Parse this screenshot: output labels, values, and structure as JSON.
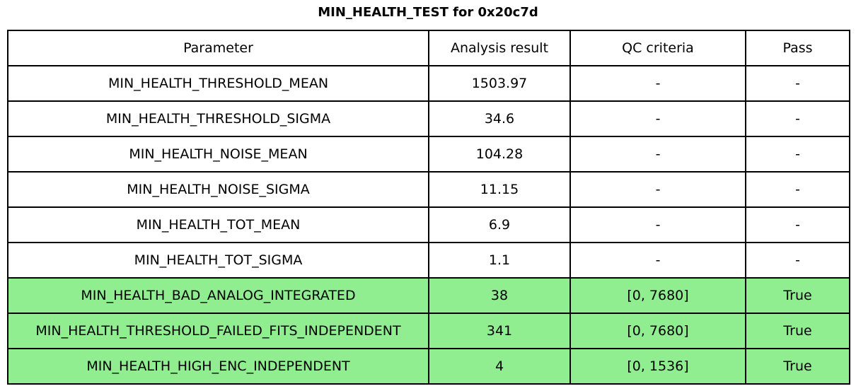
{
  "title": "MIN_HEALTH_TEST for 0x20c7d",
  "chart_data": {
    "type": "table",
    "title": "MIN_HEALTH_TEST for 0x20c7d",
    "columns": [
      "Parameter",
      "Analysis result",
      "QC criteria",
      "Pass"
    ],
    "rows": [
      {
        "parameter": "MIN_HEALTH_THRESHOLD_MEAN",
        "analysis_result": "1503.97",
        "qc_criteria": "-",
        "pass": "-",
        "highlighted": false
      },
      {
        "parameter": "MIN_HEALTH_THRESHOLD_SIGMA",
        "analysis_result": "34.6",
        "qc_criteria": "-",
        "pass": "-",
        "highlighted": false
      },
      {
        "parameter": "MIN_HEALTH_NOISE_MEAN",
        "analysis_result": "104.28",
        "qc_criteria": "-",
        "pass": "-",
        "highlighted": false
      },
      {
        "parameter": "MIN_HEALTH_NOISE_SIGMA",
        "analysis_result": "11.15",
        "qc_criteria": "-",
        "pass": "-",
        "highlighted": false
      },
      {
        "parameter": "MIN_HEALTH_TOT_MEAN",
        "analysis_result": "6.9",
        "qc_criteria": "-",
        "pass": "-",
        "highlighted": false
      },
      {
        "parameter": "MIN_HEALTH_TOT_SIGMA",
        "analysis_result": "1.1",
        "qc_criteria": "-",
        "pass": "-",
        "highlighted": false
      },
      {
        "parameter": "MIN_HEALTH_BAD_ANALOG_INTEGRATED",
        "analysis_result": "38",
        "qc_criteria": "[0, 7680]",
        "pass": "True",
        "highlighted": true
      },
      {
        "parameter": "MIN_HEALTH_THRESHOLD_FAILED_FITS_INDEPENDENT",
        "analysis_result": "341",
        "qc_criteria": "[0, 7680]",
        "pass": "True",
        "highlighted": true
      },
      {
        "parameter": "MIN_HEALTH_HIGH_ENC_INDEPENDENT",
        "analysis_result": "4",
        "qc_criteria": "[0, 1536]",
        "pass": "True",
        "highlighted": true
      }
    ],
    "layout": {
      "grid": true,
      "text_align": "center",
      "highlighted_row_indices": [
        6,
        7,
        8
      ]
    },
    "colors": {
      "highlight_green": "#90EE90",
      "border": "#000000",
      "text": "#000000",
      "background": "#FFFFFF"
    }
  }
}
